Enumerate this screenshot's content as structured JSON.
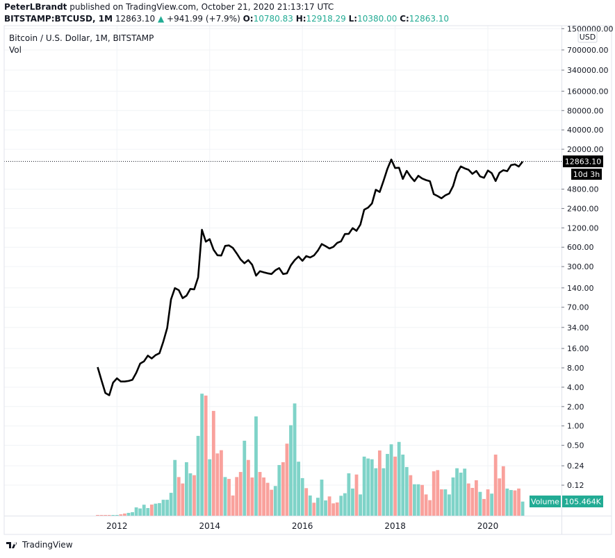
{
  "header": {
    "author": "PeterLBrandt",
    "published_text": "published on TradingView.com, October 21, 2020 21:13:17 UTC",
    "symbol": "BITSTAMP:BTCUSD, 1M",
    "last": "12863.10",
    "change": "+941.99 (+7.9%)",
    "o_label": "O:",
    "o": "10780.83",
    "h_label": "H:",
    "h": "12918.29",
    "l_label": "L:",
    "l": "10380.00",
    "c_label": "C:",
    "c": "12863.10"
  },
  "pane": {
    "title": "Bitcoin / U.S. Dollar, 1M, BITSTAMP",
    "vol_label": "Vol",
    "currency": "USD"
  },
  "price_marker": {
    "value": "12863.10",
    "countdown": "10d 3h"
  },
  "volume_marker": {
    "label": "Volume",
    "value": "105.464K"
  },
  "footer": {
    "brand": "TradingView"
  },
  "colors": {
    "up": "#7fd3c8",
    "down": "#f9a19c",
    "line": "#000000",
    "volume_tag": "#22ab94",
    "grid": "#f0f3f6"
  },
  "chart_data": [
    {
      "type": "line",
      "title": "Bitcoin / U.S. Dollar, 1M, BITSTAMP",
      "scale": "log",
      "grid": true,
      "start_month": "2011-08",
      "x_ticks": [
        "2012",
        "2014",
        "2016",
        "2018",
        "2020"
      ],
      "y_ticks": [
        "1500000.00",
        "700000.00",
        "340000.00",
        "160000.00",
        "80000.00",
        "40000.00",
        "20000.00",
        "4800.00",
        "2400.00",
        "1200.00",
        "600.00",
        "300.00",
        "140.00",
        "70.00",
        "34.00",
        "16.00",
        "8.00",
        "4.00",
        "2.00",
        "1.00",
        "0.50",
        "0.24",
        "0.12"
      ],
      "closes": [
        8.2,
        5.1,
        3.25,
        3.0,
        4.7,
        5.5,
        4.9,
        4.9,
        5.0,
        5.2,
        6.7,
        9.3,
        10.1,
        12.4,
        11.2,
        12.6,
        13.5,
        20.4,
        33.4,
        93,
        139,
        129,
        97,
        106,
        135,
        133,
        204,
        1120,
        732,
        800,
        550,
        450,
        445,
        630,
        640,
        585,
        480,
        388,
        338,
        378,
        320,
        217,
        254,
        244,
        236,
        230,
        263,
        284,
        230,
        236,
        314,
        378,
        430,
        369,
        437,
        416,
        448,
        531,
        673,
        624,
        574,
        608,
        700,
        742,
        963,
        970,
        1190,
        1080,
        1348,
        2300,
        2480,
        2875,
        4700,
        4340,
        6450,
        9946,
        13860,
        10221,
        10326,
        6926,
        9240,
        7494,
        6391,
        7729,
        7030,
        6626,
        6371,
        4017,
        3742,
        3457,
        3854,
        4105,
        5350,
        8574,
        10817,
        10085,
        9600,
        8293,
        9199,
        7569,
        7193,
        9350,
        8523,
        6424,
        8624,
        9454,
        9137,
        11333,
        11655,
        10777,
        12863.1
      ]
    },
    {
      "type": "bar",
      "name": "Volume",
      "unit": "K",
      "values": [
        3,
        3,
        3,
        3,
        3,
        3,
        10,
        16,
        21,
        26,
        62,
        54,
        82,
        57,
        83,
        90,
        94,
        119,
        119,
        171,
        417,
        289,
        241,
        400,
        317,
        303,
        597,
        913,
        899,
        422,
        784,
        466,
        490,
        289,
        275,
        151,
        289,
        327,
        561,
        417,
        286,
        743,
        327,
        286,
        246,
        194,
        222,
        379,
        400,
        539,
        677,
        840,
        404,
        281,
        206,
        151,
        97,
        134,
        270,
        114,
        144,
        92,
        99,
        149,
        168,
        317,
        203,
        308,
        159,
        442,
        428,
        422,
        355,
        488,
        355,
        462,
        534,
        442,
        552,
        457,
        364,
        303,
        235,
        235,
        230,
        159,
        116,
        332,
        341,
        197,
        197,
        159,
        286,
        355,
        322,
        352,
        241,
        208,
        265,
        178,
        125,
        197,
        165,
        457,
        279,
        370,
        203,
        192,
        189,
        203,
        105.464
      ],
      "direction": "dddduudduuuuuuduuuuuudduuduududddudddduddudddduudduuuudud uuuddduuuuduuuuudu uuduuuduudddddduuuuuudddudduddduudduud"
    }
  ]
}
